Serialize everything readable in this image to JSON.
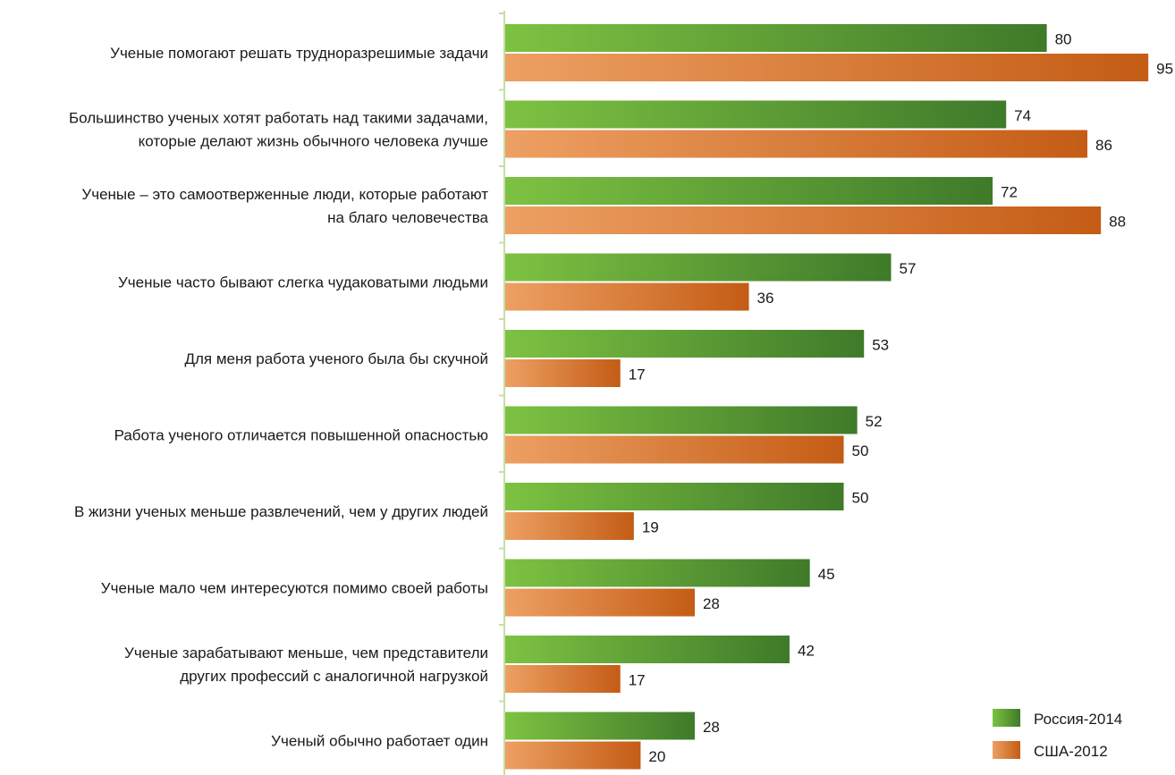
{
  "chart_data": {
    "type": "bar",
    "orientation": "horizontal",
    "categories": [
      [
        "Ученые помогают решать трудноразрешимые задачи"
      ],
      [
        "Большинство ученых хотят работать над такими задачами,",
        "которые делают жизнь обычного человека лучше"
      ],
      [
        "Ученые – это самоотверженные люди, которые работают",
        "на благо человечества"
      ],
      [
        "Ученые часто бывают слегка чудаковатыми людьми"
      ],
      [
        "Для меня работа ученого была бы скучной"
      ],
      [
        "Работа ученого отличается повышенной опасностью"
      ],
      [
        "В жизни ученых меньше развлечений, чем у других людей"
      ],
      [
        "Ученые мало чем интересуются помимо своей работы"
      ],
      [
        "Ученые зарабатывают меньше, чем представители",
        "других профессий с аналогичной нагрузкой"
      ],
      [
        "Ученый обычно работает один"
      ]
    ],
    "series": [
      {
        "name": "Россия-2014",
        "values": [
          80,
          74,
          72,
          57,
          53,
          52,
          50,
          45,
          42,
          28
        ],
        "color_light": "#7dc242",
        "color_dark": "#3f7a2a"
      },
      {
        "name": "США-2012",
        "values": [
          95,
          86,
          88,
          36,
          17,
          50,
          19,
          28,
          17,
          20
        ],
        "color_light": "#eda063",
        "color_dark": "#c45c15"
      }
    ],
    "xlim": [
      0,
      100
    ],
    "axis_color": "#c6dda6",
    "legend_position": "bottom-right",
    "grid": false
  }
}
